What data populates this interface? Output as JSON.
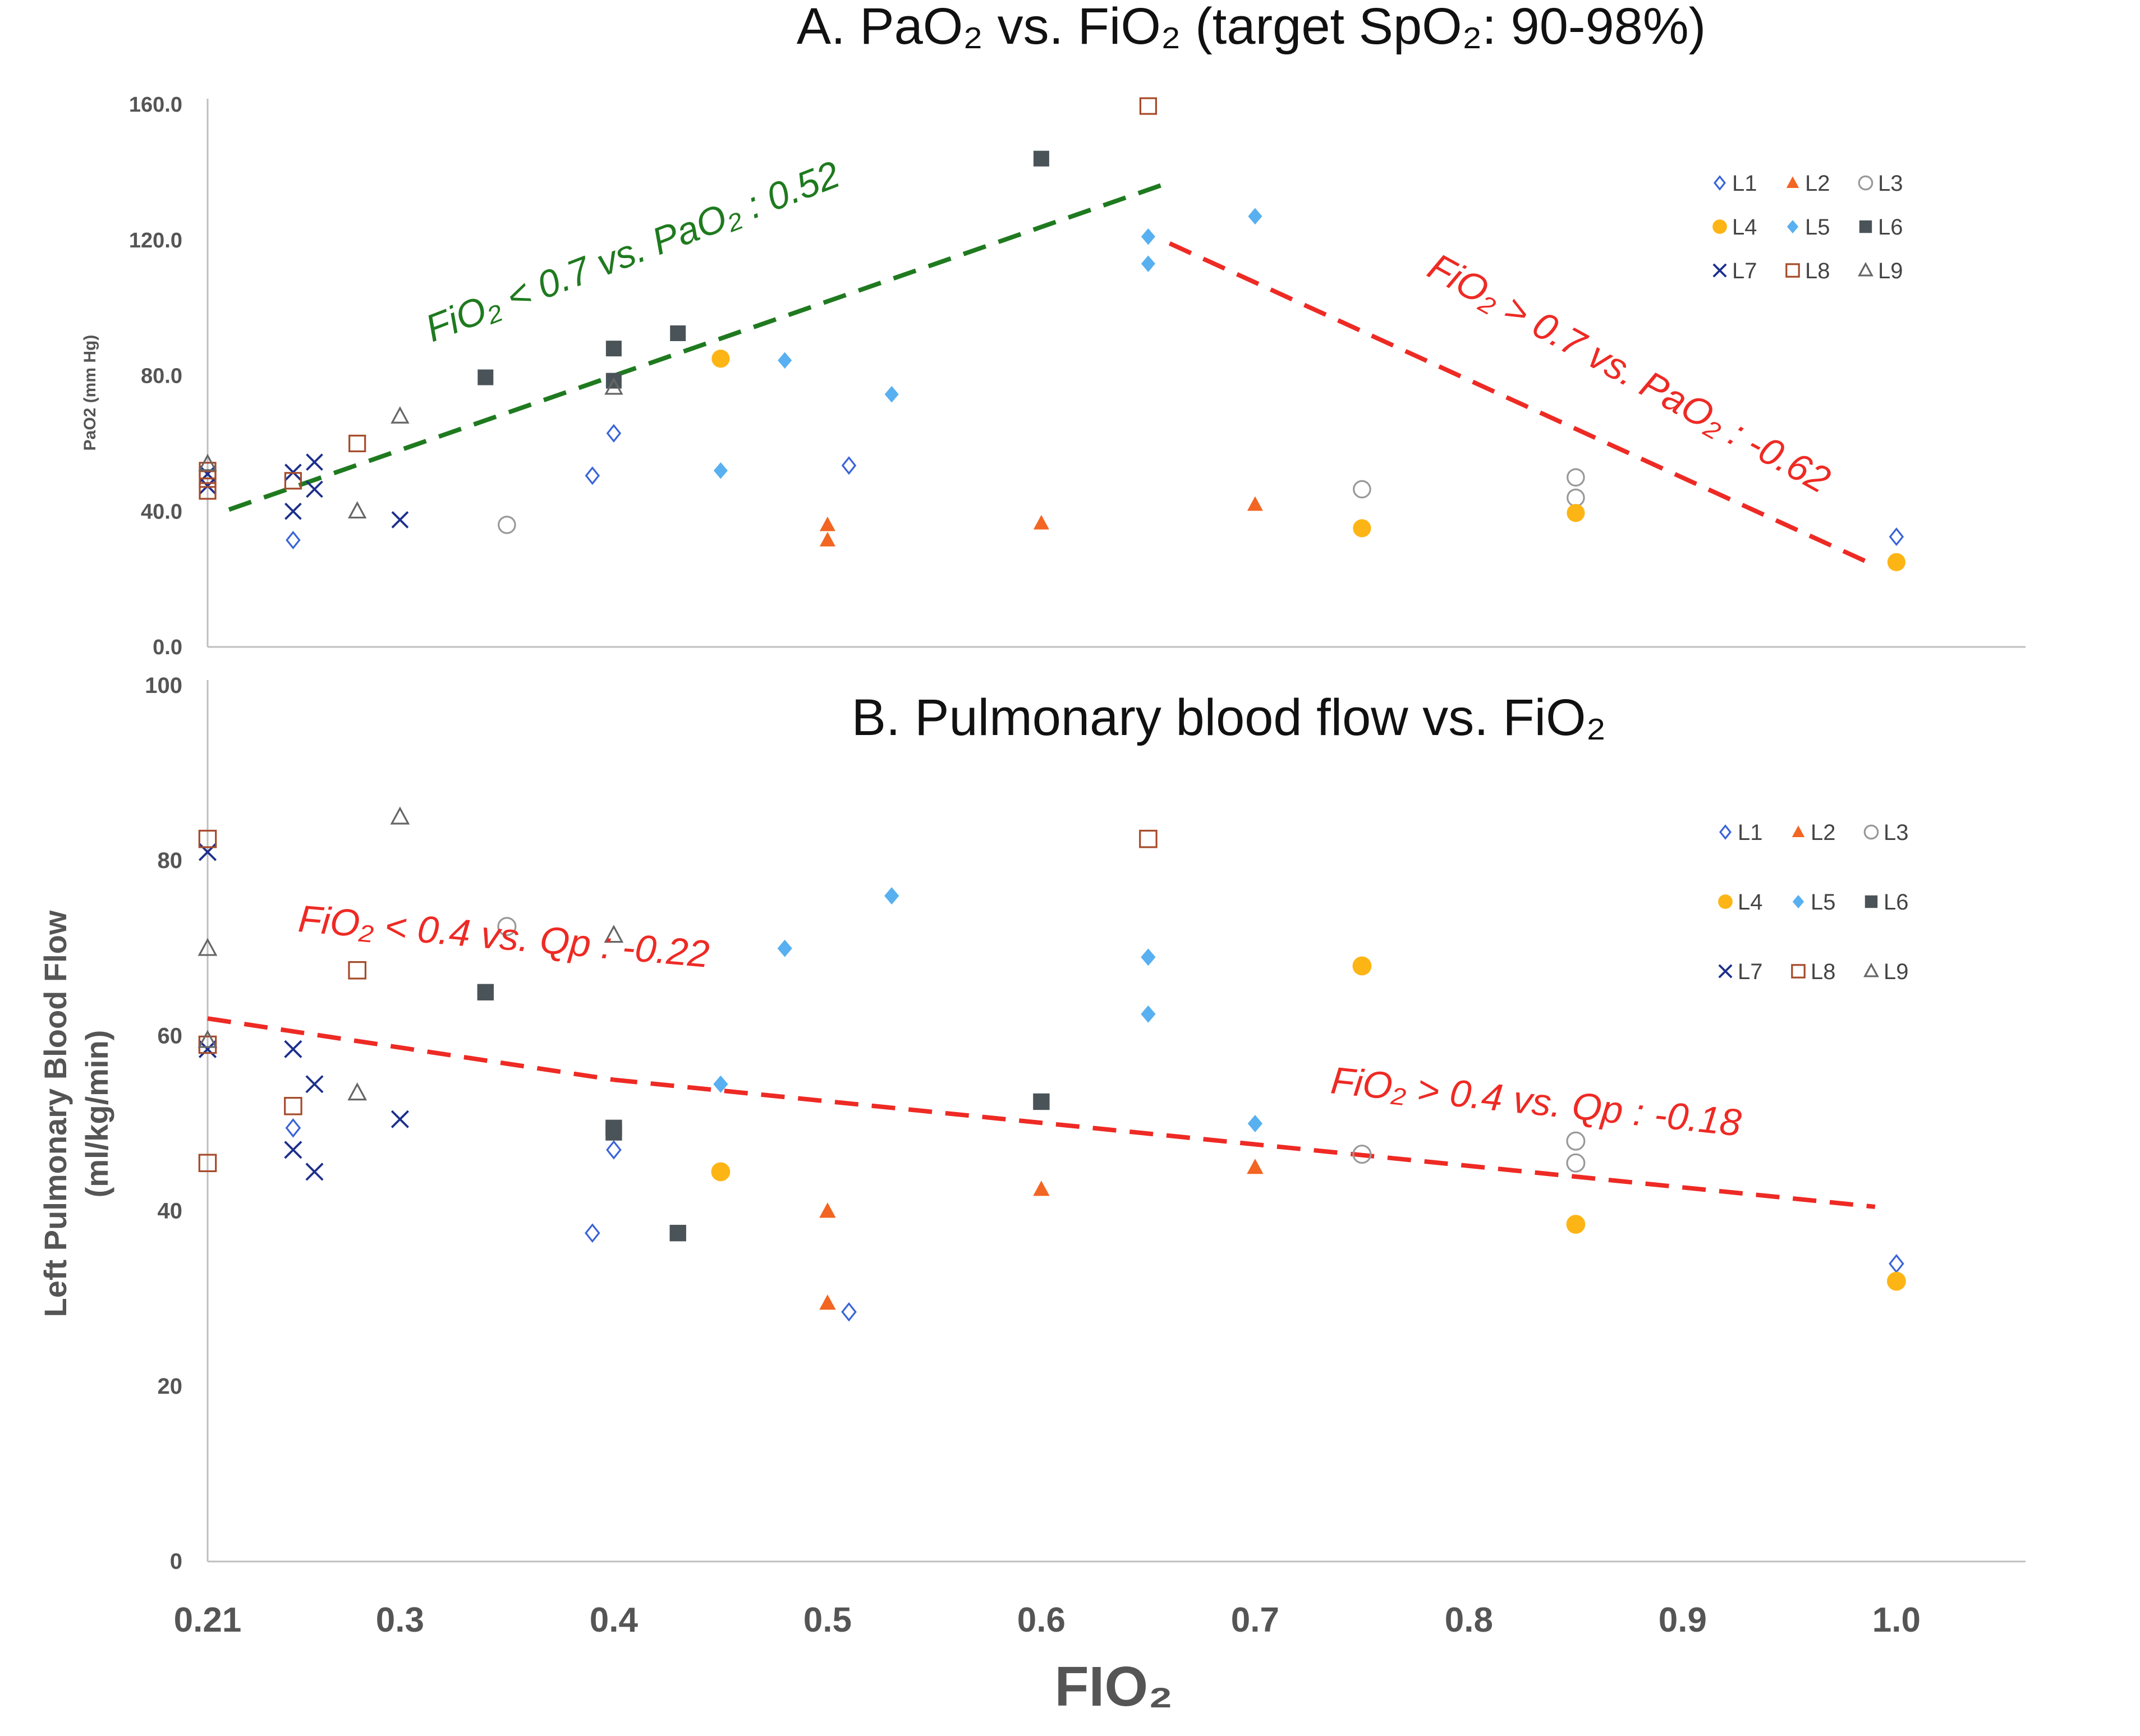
{
  "chart_data": [
    {
      "type": "scatter",
      "panel": "A",
      "title": "A.   PaO₂ vs. FiO₂ (target SpO₂: 90-98%)",
      "ylabel": "PaO2 (mm Hg)",
      "xlabel": "",
      "xlim": [
        0.21,
        1.05
      ],
      "ylim": [
        0,
        160
      ],
      "yticks": [
        "0.0",
        "40.0",
        "80.0",
        "120.0",
        "160.0"
      ],
      "grid": false,
      "legend": [
        "L1",
        "L2",
        "L3",
        "L4",
        "L5",
        "L6",
        "L7",
        "L8",
        "L9"
      ],
      "legend_position": "top-right",
      "series": [
        {
          "name": "L1",
          "marker": "diamond-open",
          "color": "#3a64d8",
          "points": [
            [
              0.25,
              31.5
            ],
            [
              0.39,
              50.5
            ],
            [
              0.4,
              63
            ],
            [
              0.51,
              53.5
            ],
            [
              1.0,
              32.5
            ]
          ]
        },
        {
          "name": "L2",
          "marker": "triangle-filled",
          "color": "#f26522",
          "points": [
            [
              0.5,
              31.5
            ],
            [
              0.5,
              36
            ],
            [
              0.6,
              36.5
            ],
            [
              0.7,
              42
            ]
          ]
        },
        {
          "name": "L3",
          "marker": "circle-open",
          "color": "#999999",
          "points": [
            [
              0.35,
              36
            ],
            [
              0.75,
              46.5
            ],
            [
              0.85,
              44
            ],
            [
              0.85,
              50
            ]
          ]
        },
        {
          "name": "L4",
          "marker": "circle-filled",
          "color": "#fdb515",
          "points": [
            [
              0.45,
              85
            ],
            [
              0.75,
              35
            ],
            [
              0.85,
              39.5
            ],
            [
              1.0,
              25
            ]
          ]
        },
        {
          "name": "L5",
          "marker": "diamond-filled",
          "color": "#58b0f0",
          "points": [
            [
              0.45,
              52
            ],
            [
              0.48,
              84.5
            ],
            [
              0.53,
              74.5
            ],
            [
              0.65,
              113
            ],
            [
              0.65,
              121
            ],
            [
              0.7,
              127
            ]
          ]
        },
        {
          "name": "L6",
          "marker": "square-filled",
          "color": "#4a5458",
          "points": [
            [
              0.34,
              79.5
            ],
            [
              0.4,
              78.5
            ],
            [
              0.4,
              88
            ],
            [
              0.43,
              92.5
            ],
            [
              0.6,
              144
            ]
          ]
        },
        {
          "name": "L7",
          "marker": "x",
          "color": "#1c2f8c",
          "points": [
            [
              0.21,
              47.5
            ],
            [
              0.21,
              51
            ],
            [
              0.25,
              40
            ],
            [
              0.25,
              51.5
            ],
            [
              0.26,
              46.5
            ],
            [
              0.26,
              54.5
            ],
            [
              0.3,
              37.5
            ]
          ]
        },
        {
          "name": "L8",
          "marker": "square-open",
          "color": "#a64b2a",
          "points": [
            [
              0.21,
              46
            ],
            [
              0.21,
              49.5
            ],
            [
              0.21,
              52
            ],
            [
              0.25,
              49
            ],
            [
              0.28,
              60
            ],
            [
              0.65,
              159.5
            ]
          ]
        },
        {
          "name": "L9",
          "marker": "triangle-open",
          "color": "#666666",
          "points": [
            [
              0.21,
              54
            ],
            [
              0.28,
              40
            ],
            [
              0.3,
              68
            ],
            [
              0.4,
              76.5
            ]
          ]
        }
      ],
      "trendlines": [
        {
          "label": "FiO₂ < 0.7 vs. PaO₂ : 0.52",
          "color": "#1f7a1f",
          "from": [
            0.22,
            40.5
          ],
          "to": [
            0.66,
            137
          ]
        },
        {
          "label": "FiO₂ > 0.7 vs. PaO₂ : -0.62",
          "color": "#ee2a24",
          "from": [
            0.66,
            119
          ],
          "to": [
            0.99,
            24
          ]
        }
      ]
    },
    {
      "type": "scatter",
      "panel": "B",
      "title": "B. Pulmonary blood flow vs. FiO₂",
      "ylabel_line1": "Left Pulmonary Blood Flow",
      "ylabel_line2": "(ml/kg/min)",
      "xlabel": "FIO₂",
      "xticks": [
        "0.21",
        "0.3",
        "0.4",
        "0.5",
        "0.6",
        "0.7",
        "0.8",
        "0.9",
        "1.0"
      ],
      "xlim": [
        0.21,
        1.05
      ],
      "ylim": [
        0,
        100
      ],
      "yticks": [
        "0",
        "20",
        "40",
        "60",
        "80",
        "100"
      ],
      "grid": false,
      "legend": [
        "L1",
        "L2",
        "L3",
        "L4",
        "L5",
        "L6",
        "L7",
        "L8",
        "L9"
      ],
      "legend_position": "top-right",
      "series": [
        {
          "name": "L1",
          "marker": "diamond-open",
          "color": "#3a64d8",
          "points": [
            [
              0.25,
              49.5
            ],
            [
              0.39,
              37.5
            ],
            [
              0.4,
              47
            ],
            [
              0.51,
              28.5
            ],
            [
              1.0,
              34
            ]
          ]
        },
        {
          "name": "L2",
          "marker": "triangle-filled",
          "color": "#f26522",
          "points": [
            [
              0.5,
              40
            ],
            [
              0.5,
              29.5
            ],
            [
              0.6,
              42.5
            ],
            [
              0.7,
              45
            ]
          ]
        },
        {
          "name": "L3",
          "marker": "circle-open",
          "color": "#999999",
          "points": [
            [
              0.35,
              72.5
            ],
            [
              0.75,
              46.5
            ],
            [
              0.85,
              48
            ],
            [
              0.85,
              45.5
            ]
          ]
        },
        {
          "name": "L4",
          "marker": "circle-filled",
          "color": "#fdb515",
          "points": [
            [
              0.45,
              44.5
            ],
            [
              0.75,
              68
            ],
            [
              0.85,
              38.5
            ],
            [
              1.0,
              32
            ]
          ]
        },
        {
          "name": "L5",
          "marker": "diamond-filled",
          "color": "#58b0f0",
          "points": [
            [
              0.45,
              54.5
            ],
            [
              0.48,
              70
            ],
            [
              0.53,
              76
            ],
            [
              0.65,
              69
            ],
            [
              0.65,
              62.5
            ],
            [
              0.7,
              50
            ]
          ]
        },
        {
          "name": "L6",
          "marker": "square-filled",
          "color": "#4a5458",
          "points": [
            [
              0.34,
              65
            ],
            [
              0.4,
              49.5
            ],
            [
              0.4,
              49
            ],
            [
              0.43,
              37.5
            ],
            [
              0.6,
              52.5
            ]
          ]
        },
        {
          "name": "L7",
          "marker": "x",
          "color": "#1c2f8c",
          "points": [
            [
              0.21,
              81
            ],
            [
              0.21,
              58.5
            ],
            [
              0.25,
              58.5
            ],
            [
              0.25,
              47
            ],
            [
              0.26,
              54.5
            ],
            [
              0.26,
              44.5
            ],
            [
              0.3,
              50.5
            ]
          ]
        },
        {
          "name": "L8",
          "marker": "square-open",
          "color": "#a64b2a",
          "points": [
            [
              0.21,
              82.5
            ],
            [
              0.21,
              59
            ],
            [
              0.21,
              45.5
            ],
            [
              0.25,
              52
            ],
            [
              0.28,
              67.5
            ],
            [
              0.65,
              82.5
            ]
          ]
        },
        {
          "name": "L9",
          "marker": "triangle-open",
          "color": "#666666",
          "points": [
            [
              0.21,
              70
            ],
            [
              0.21,
              59.5
            ],
            [
              0.28,
              53.5
            ],
            [
              0.3,
              85
            ],
            [
              0.4,
              71.5
            ]
          ]
        }
      ],
      "trendlines": [
        {
          "label": "FiO₂ < 0.4 vs. Qp : -0.22",
          "color": "#ee2a24",
          "from": [
            0.21,
            62
          ],
          "to": [
            0.4,
            55
          ]
        },
        {
          "label": "FiO₂ > 0.4 vs. Qp : -0.18",
          "color": "#ee2a24",
          "from": [
            0.4,
            55
          ],
          "to": [
            0.99,
            40.5
          ]
        }
      ]
    }
  ]
}
